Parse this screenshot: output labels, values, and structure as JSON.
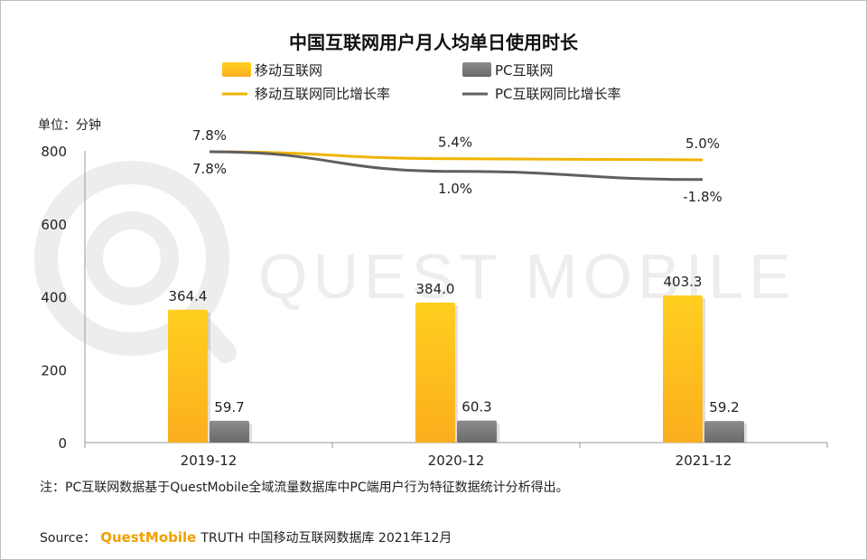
{
  "colors": {
    "mobile": "#f5b500",
    "mobile_light": "#ffd23a",
    "pc": "#7a7a7a",
    "pc_light": "#9a9a9a",
    "mobile_line": "#f0b400",
    "pc_line": "#5f5f5f",
    "brand": "#f0a000",
    "watermark": "#ececec"
  },
  "chart_data": {
    "type": "bar",
    "title": "中国互联网用户月人均单日使用时长",
    "unit_label": "单位：分钟",
    "categories": [
      "2019-12",
      "2020-12",
      "2021-12"
    ],
    "ylim": [
      0,
      800
    ],
    "yticks": [
      "0",
      "200",
      "400",
      "600",
      "800"
    ],
    "series": [
      {
        "name": "移动互联网",
        "kind": "bar",
        "values": [
          364.4,
          384.0,
          403.3
        ],
        "labels": [
          "364.4",
          "384.0",
          "403.3"
        ]
      },
      {
        "name": "PC互联网",
        "kind": "bar",
        "values": [
          59.7,
          60.3,
          59.2
        ],
        "labels": [
          "59.7",
          "60.3",
          "59.2"
        ]
      },
      {
        "name": "移动互联网同比增长率",
        "kind": "line",
        "values": [
          7.8,
          5.4,
          5.0
        ],
        "labels": [
          "7.8%",
          "5.4%",
          "5.0%"
        ]
      },
      {
        "name": "PC互联网同比增长率",
        "kind": "line",
        "values": [
          7.8,
          1.0,
          -1.8
        ],
        "labels": [
          "7.8%",
          "1.0%",
          "-1.8%"
        ]
      }
    ],
    "grid": false,
    "legend": "top"
  },
  "note": "注：PC互联网数据基于QuestMobile全域流量数据库中PC端用户行为特征数据统计分析得出。",
  "source": {
    "prefix": "Source：",
    "brand": "QuestMobile",
    "rest": " TRUTH 中国移动互联网数据库 2021年12月"
  }
}
